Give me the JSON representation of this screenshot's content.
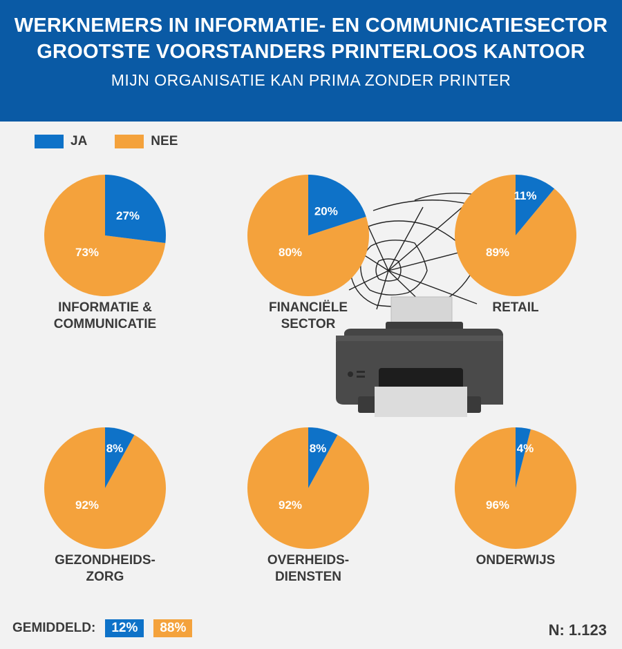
{
  "header": {
    "title_line1": "WERKNEMERS IN INFORMATIE- EN COMMUNICATIESECTOR",
    "title_line2": "GROOTSTE VOORSTANDERS PRINTERLOOS KANTOOR",
    "subtitle": "MIJN ORGANISATIE KAN PRIMA ZONDER PRINTER"
  },
  "legend": {
    "ja": "JA",
    "nee": "NEE"
  },
  "colors": {
    "ja": "#0e72c8",
    "nee": "#f4a23c",
    "header": "#0a5aa5"
  },
  "chart_data": {
    "type": "pie",
    "series_names": [
      "JA",
      "NEE"
    ],
    "pies": [
      {
        "category_line1": "INFORMATIE &",
        "category_line2": "COMMUNICATIE",
        "ja": 27,
        "nee": 73,
        "ja_label": "27%",
        "nee_label": "73%"
      },
      {
        "category_line1": "FINANCIËLE",
        "category_line2": "SECTOR",
        "ja": 20,
        "nee": 80,
        "ja_label": "20%",
        "nee_label": "80%"
      },
      {
        "category_line1": "RETAIL",
        "category_line2": "",
        "ja": 11,
        "nee": 89,
        "ja_label": "11%",
        "nee_label": "89%"
      },
      {
        "category_line1": "GEZONDHEIDS-",
        "category_line2": "ZORG",
        "ja": 8,
        "nee": 92,
        "ja_label": "8%",
        "nee_label": "92%"
      },
      {
        "category_line1": "OVERHEIDS-",
        "category_line2": "DIENSTEN",
        "ja": 8,
        "nee": 92,
        "ja_label": "8%",
        "nee_label": "92%"
      },
      {
        "category_line1": "ONDERWIJS",
        "category_line2": "",
        "ja": 4,
        "nee": 96,
        "ja_label": "4%",
        "nee_label": "96%"
      }
    ]
  },
  "footer": {
    "average_label": "GEMIDDELD:",
    "average_ja": "12%",
    "average_nee": "88%",
    "n_label": "N: 1.123"
  },
  "illustration": {
    "name": "printer-with-cobweb-icon"
  }
}
